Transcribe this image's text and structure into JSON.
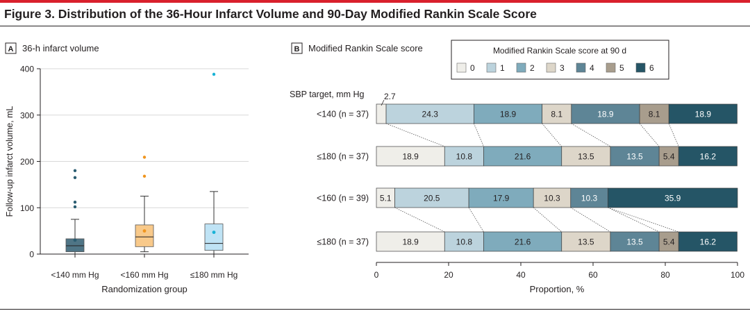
{
  "figure_title": "Figure 3. Distribution of the 36-Hour Infarct Volume and 90-Day Modified Rankin Scale Score",
  "colors": {
    "accent_rule": "#d9202c",
    "mrs": [
      "#efeee9",
      "#bcd3dd",
      "#7fabbc",
      "#ddd6c9",
      "#5e8596",
      "#a89d8d",
      "#255566"
    ],
    "box": [
      "#4f7586",
      "#f8c98a",
      "#bfe3f5"
    ],
    "outlier": [
      "#2b5d71",
      "#f0951e",
      "#19b3d6"
    ]
  },
  "chart_data": [
    {
      "type": "box",
      "panel_label": "A",
      "panel_title": "36-h infarct volume",
      "ylabel": "Follow-up infarct volume, mL",
      "xlabel": "Randomization group",
      "ylim": [
        0,
        400
      ],
      "yticks": [
        0,
        100,
        200,
        300,
        400
      ],
      "grid": true,
      "categories": [
        "<140 mm Hg",
        "<160 mm Hg",
        "≤180 mm Hg"
      ],
      "boxes": [
        {
          "min": 0,
          "q1": 5,
          "median": 18,
          "q3": 33,
          "max": 75,
          "mean": 30,
          "outliers": [
            180,
            165,
            112,
            102
          ]
        },
        {
          "min": 5,
          "q1": 16,
          "median": 37,
          "q3": 63,
          "max": 125,
          "mean": 50,
          "outliers": [
            209,
            168
          ]
        },
        {
          "min": 0,
          "q1": 8,
          "median": 23,
          "q3": 65,
          "max": 135,
          "mean": 47,
          "outliers": [
            388
          ]
        }
      ]
    },
    {
      "type": "stacked-bar-horizontal",
      "panel_label": "B",
      "panel_title": "Modified Rankin Scale score",
      "legend_title": "Modified Rankin Scale score at 90 d",
      "legend_position": "top-right",
      "legend": [
        "0",
        "1",
        "2",
        "3",
        "4",
        "5",
        "6"
      ],
      "row_header": "SBP target, mm Hg",
      "xlabel": "Proportion, %",
      "xlim": [
        0,
        100
      ],
      "xticks": [
        0,
        20,
        40,
        60,
        80,
        100
      ],
      "callout": "2.7",
      "rows": [
        {
          "label": "<140 (n = 37)",
          "values": [
            2.7,
            24.3,
            18.9,
            8.1,
            18.9,
            8.1,
            18.9
          ]
        },
        {
          "label": "≤180 (n = 37)",
          "values": [
            18.9,
            10.8,
            21.6,
            13.5,
            13.5,
            5.4,
            16.2
          ]
        },
        {
          "label": "<160 (n = 39)",
          "values": [
            5.1,
            20.5,
            17.9,
            10.3,
            10.3,
            0,
            35.9
          ]
        },
        {
          "label": "≤180 (n = 37)",
          "values": [
            18.9,
            10.8,
            21.6,
            13.5,
            13.5,
            5.4,
            16.2
          ]
        }
      ]
    }
  ]
}
